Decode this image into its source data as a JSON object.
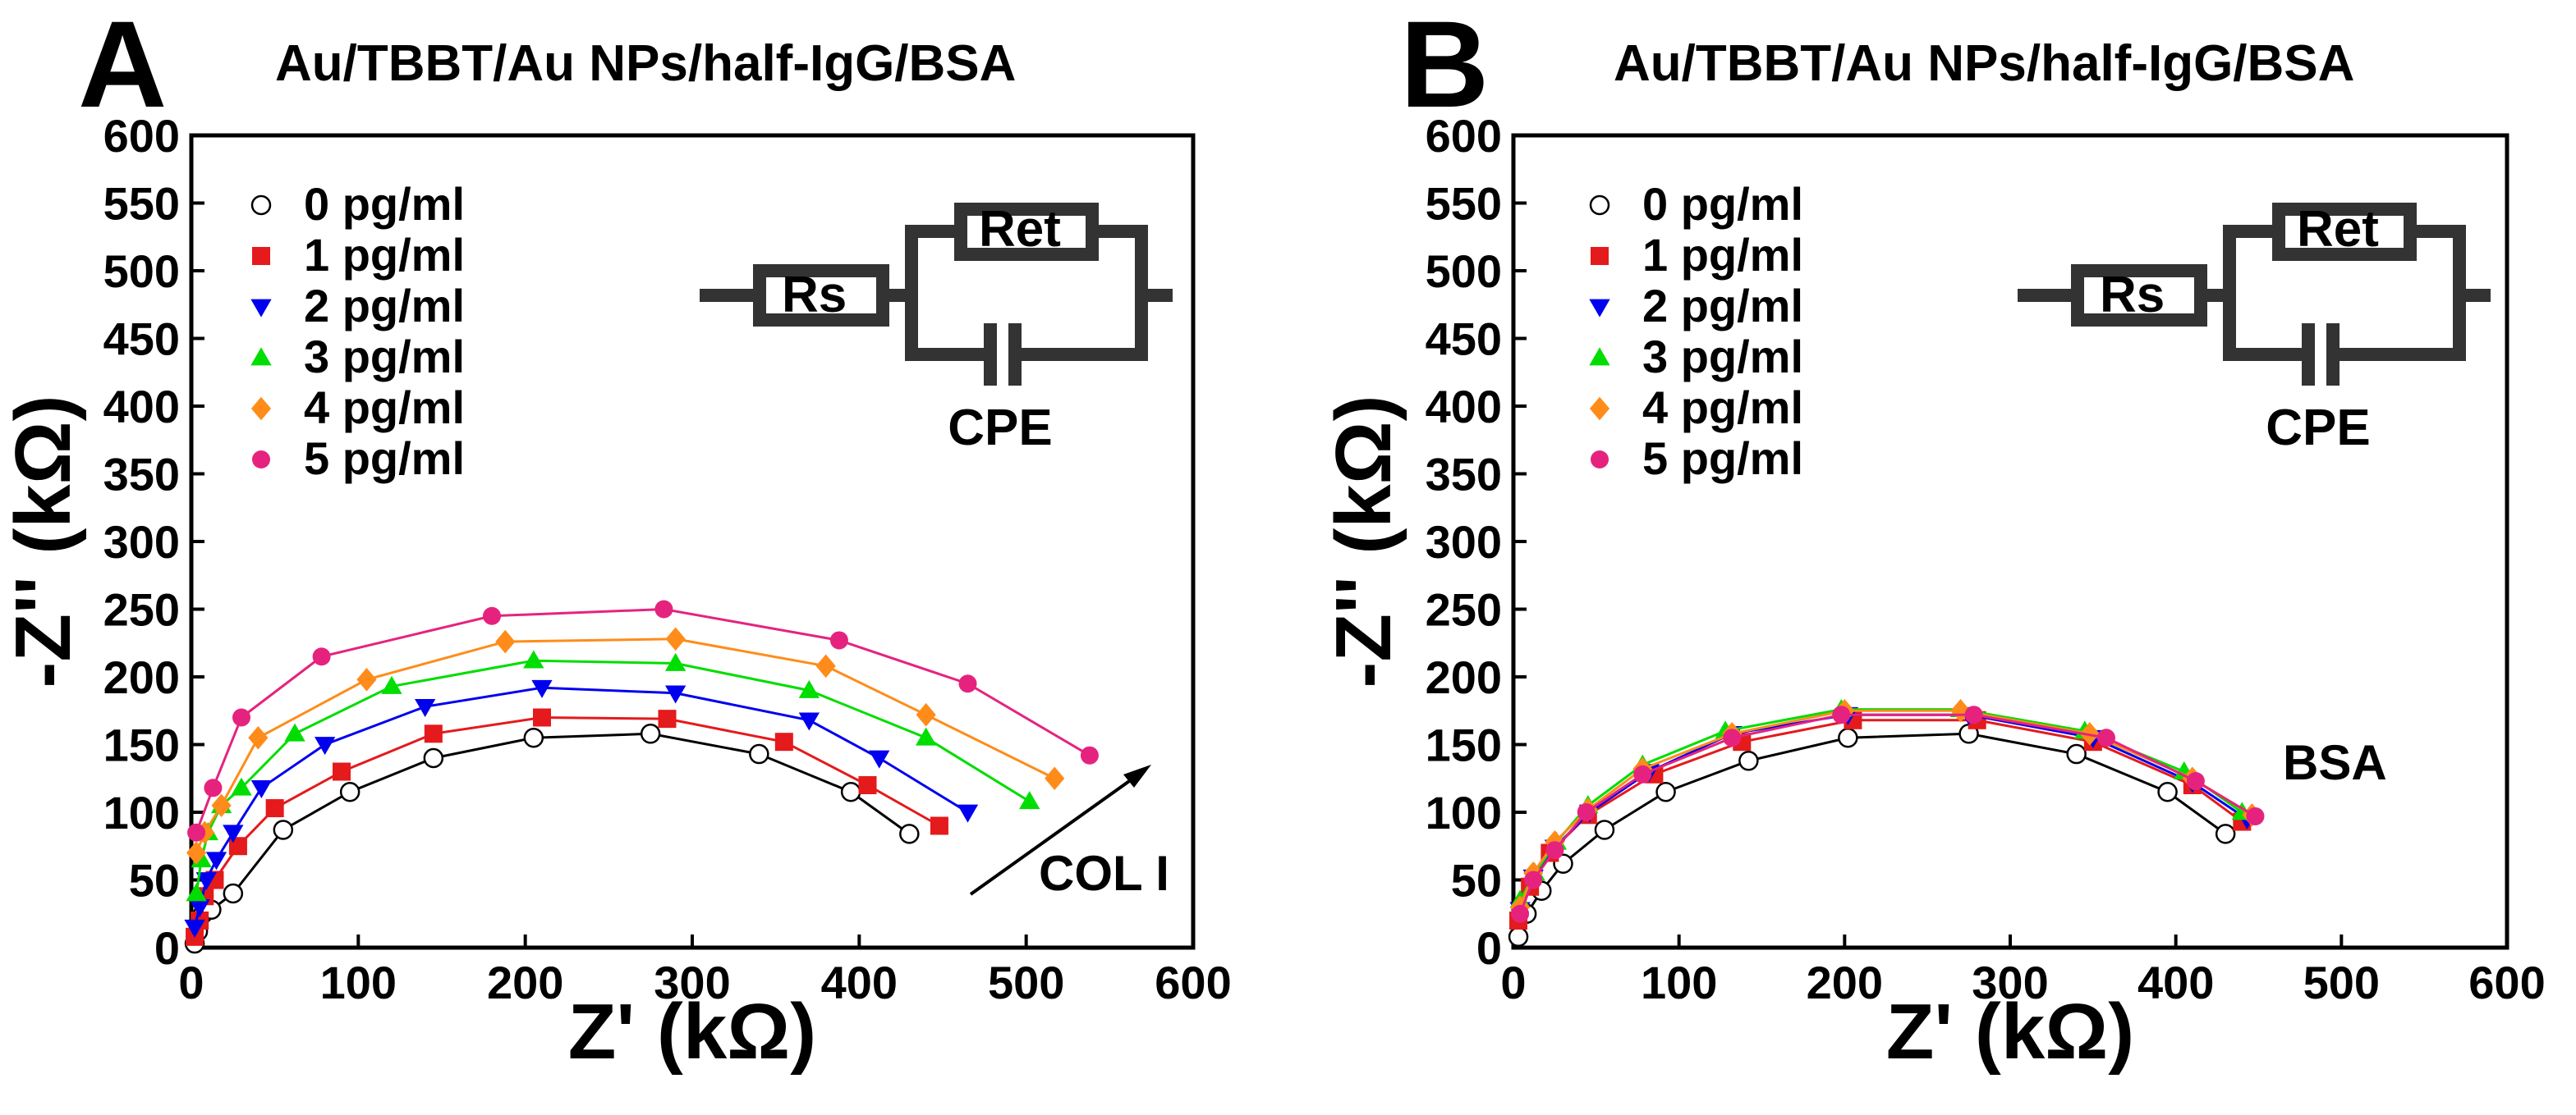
{
  "chart_data": [
    {
      "type": "scatter",
      "panel": "A",
      "title": "Au/TBBT/Au NPs/half-IgG/BSA",
      "xlabel": "Z' (kΩ)",
      "ylabel": "-Z'' (kΩ)",
      "xlim": [
        0,
        600
      ],
      "ylim": [
        0,
        600
      ],
      "xticks": [
        0,
        100,
        200,
        300,
        400,
        500,
        600
      ],
      "yticks": [
        0,
        50,
        100,
        150,
        200,
        250,
        300,
        350,
        400,
        450,
        500,
        550,
        600
      ],
      "grid": false,
      "legend_position": "top-left",
      "annotation": {
        "text": "COL I",
        "arrow_from": [
          420,
          40
        ],
        "arrow_to": [
          570,
          140
        ]
      },
      "circuit": {
        "rs": "Rs",
        "ret": "Ret",
        "cpe": "CPE"
      },
      "series": [
        {
          "name": "0 pg/ml",
          "marker": "circle-open",
          "color": "#000000",
          "line_color": "#000000",
          "x": [
            2,
            4,
            7,
            12,
            25,
            55,
            95,
            145,
            205,
            275,
            340,
            395,
            430
          ],
          "y": [
            3,
            12,
            25,
            28,
            40,
            87,
            115,
            140,
            155,
            158,
            143,
            115,
            84
          ]
        },
        {
          "name": "1 pg/ml",
          "marker": "square",
          "color": "#e41a1c",
          "line_color": "#e41a1c",
          "x": [
            2,
            5,
            8,
            14,
            28,
            50,
            90,
            145,
            210,
            285,
            355,
            405,
            448
          ],
          "y": [
            8,
            20,
            38,
            50,
            75,
            103,
            130,
            158,
            170,
            169,
            152,
            120,
            90
          ]
        },
        {
          "name": "2 pg/ml",
          "marker": "triangle-down",
          "color": "#0000ee",
          "line_color": "#0000ee",
          "x": [
            2,
            5,
            9,
            15,
            25,
            42,
            80,
            140,
            210,
            290,
            370,
            412,
            465
          ],
          "y": [
            15,
            30,
            50,
            65,
            85,
            118,
            150,
            178,
            192,
            188,
            168,
            140,
            100
          ]
        },
        {
          "name": "3 pg/ml",
          "marker": "triangle-up",
          "color": "#00dd00",
          "line_color": "#00dd00",
          "x": [
            3,
            6,
            10,
            18,
            30,
            62,
            120,
            205,
            290,
            370,
            440,
            502
          ],
          "y": [
            40,
            65,
            85,
            105,
            118,
            158,
            193,
            212,
            210,
            190,
            155,
            108
          ]
        },
        {
          "name": "4 pg/ml",
          "marker": "diamond",
          "color": "#ff8c1a",
          "line_color": "#ff8c1a",
          "x": [
            3,
            8,
            18,
            40,
            105,
            188,
            290,
            380,
            440,
            517
          ],
          "y": [
            70,
            85,
            105,
            155,
            198,
            226,
            228,
            208,
            172,
            125
          ]
        },
        {
          "name": "5 pg/ml",
          "marker": "circle",
          "color": "#e5237f",
          "line_color": "#e5237f",
          "x": [
            3,
            13,
            30,
            78,
            180,
            283,
            388,
            465,
            538
          ],
          "y": [
            85,
            118,
            170,
            215,
            245,
            250,
            227,
            195,
            142
          ]
        }
      ]
    },
    {
      "type": "scatter",
      "panel": "B",
      "title": "Au/TBBT/Au NPs/half-IgG/BSA",
      "xlabel": "Z' (kΩ)",
      "ylabel": "-Z'' (kΩ)",
      "xlim": [
        0,
        600
      ],
      "ylim": [
        0,
        600
      ],
      "xticks": [
        0,
        100,
        200,
        300,
        400,
        500,
        600
      ],
      "yticks": [
        0,
        50,
        100,
        150,
        200,
        250,
        300,
        350,
        400,
        450,
        500,
        550,
        600
      ],
      "grid": false,
      "legend_position": "top-left",
      "annotation": {
        "text": "BSA"
      },
      "circuit": {
        "rs": "Rs",
        "ret": "Ret",
        "cpe": "CPE"
      },
      "series": [
        {
          "name": "0 pg/ml",
          "marker": "circle-open",
          "color": "#000000",
          "line_color": "#000000",
          "x": [
            3,
            8,
            17,
            30,
            55,
            92,
            142,
            202,
            275,
            340,
            395,
            430
          ],
          "y": [
            8,
            25,
            42,
            62,
            87,
            115,
            138,
            155,
            158,
            143,
            115,
            84
          ]
        },
        {
          "name": "1 pg/ml",
          "marker": "square",
          "color": "#e41a1c",
          "line_color": "#e41a1c",
          "x": [
            3,
            10,
            22,
            45,
            85,
            138,
            205,
            280,
            350,
            410,
            440
          ],
          "y": [
            20,
            45,
            70,
            98,
            128,
            152,
            168,
            168,
            152,
            120,
            93
          ]
        },
        {
          "name": "2 pg/ml",
          "marker": "triangle-down",
          "color": "#0000ee",
          "line_color": "#0000ee",
          "x": [
            4,
            12,
            25,
            46,
            82,
            132,
            202,
            275,
            350,
            410,
            443
          ],
          "y": [
            28,
            52,
            74,
            100,
            130,
            158,
            172,
            172,
            155,
            122,
            95
          ]
        },
        {
          "name": "3 pg/ml",
          "marker": "triangle-up",
          "color": "#00dd00",
          "line_color": "#00dd00",
          "x": [
            4,
            13,
            26,
            45,
            78,
            128,
            198,
            270,
            345,
            405,
            440
          ],
          "y": [
            35,
            55,
            78,
            105,
            135,
            160,
            176,
            176,
            160,
            130,
            100
          ]
        },
        {
          "name": "4 pg/ml",
          "marker": "diamond",
          "color": "#ff8c1a",
          "line_color": "#ff8c1a",
          "x": [
            4,
            12,
            25,
            45,
            78,
            132,
            200,
            270,
            348,
            410,
            446
          ],
          "y": [
            30,
            55,
            78,
            102,
            132,
            158,
            175,
            175,
            158,
            125,
            98
          ]
        },
        {
          "name": "5 pg/ml",
          "marker": "circle",
          "color": "#e5237f",
          "line_color": "#e5237f",
          "x": [
            4,
            12,
            25,
            44,
            78,
            132,
            198,
            278,
            358,
            412,
            448
          ],
          "y": [
            25,
            50,
            72,
            100,
            128,
            155,
            172,
            172,
            155,
            123,
            97
          ]
        }
      ]
    }
  ]
}
